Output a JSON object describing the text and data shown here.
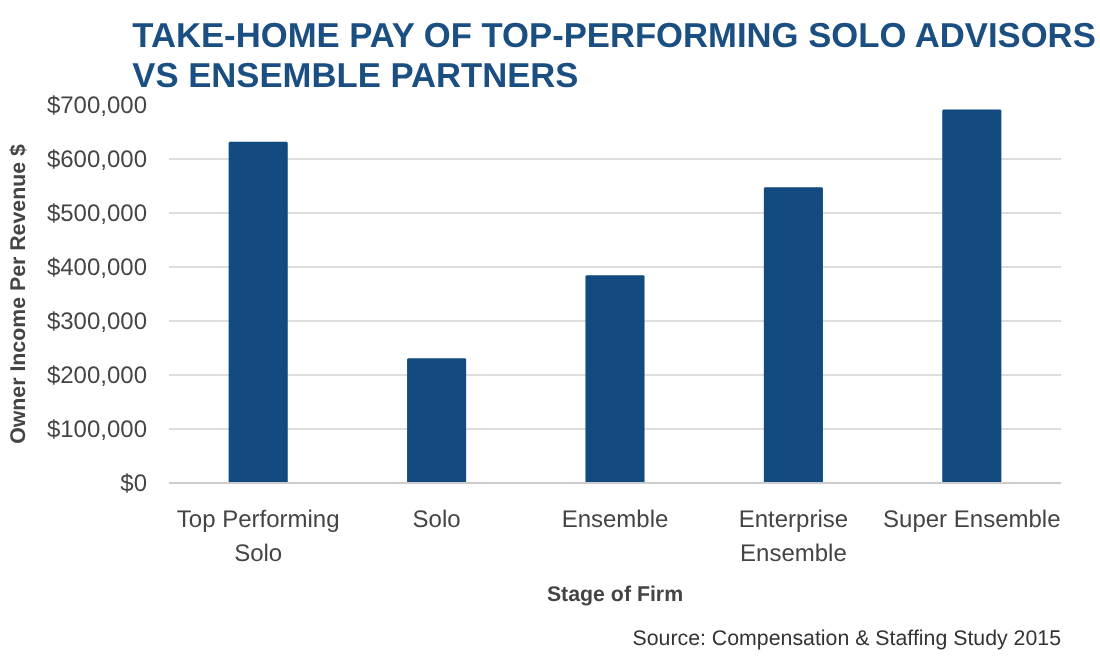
{
  "chart_data": {
    "type": "bar",
    "title": "TAKE-HOME PAY OF TOP-PERFORMING SOLO ADVISORS\nVS ENSEMBLE PARTNERS",
    "categories": [
      "Top Performing\nSolo",
      "Solo",
      "Ensemble",
      "Enterprise\nEnsemble",
      "Super Ensemble"
    ],
    "values": [
      630000,
      229000,
      383000,
      546000,
      690000
    ],
    "color": "#134a7f",
    "xlabel": "Stage of Firm",
    "ylabel": "Owner Income Per Revenue $",
    "ylim": [
      0,
      700000
    ],
    "yticks": [
      {
        "value": 0,
        "label": "$0"
      },
      {
        "value": 100000,
        "label": "$100,000"
      },
      {
        "value": 200000,
        "label": "$200,000"
      },
      {
        "value": 300000,
        "label": "$300,000"
      },
      {
        "value": 400000,
        "label": "$400,000"
      },
      {
        "value": 500000,
        "label": "$500,000"
      },
      {
        "value": 600000,
        "label": "$600,000"
      },
      {
        "value": 700000,
        "label": "$700,000"
      }
    ],
    "grid": "y",
    "annotations": [
      "Source: Compensation & Staffing Study 2015"
    ]
  }
}
